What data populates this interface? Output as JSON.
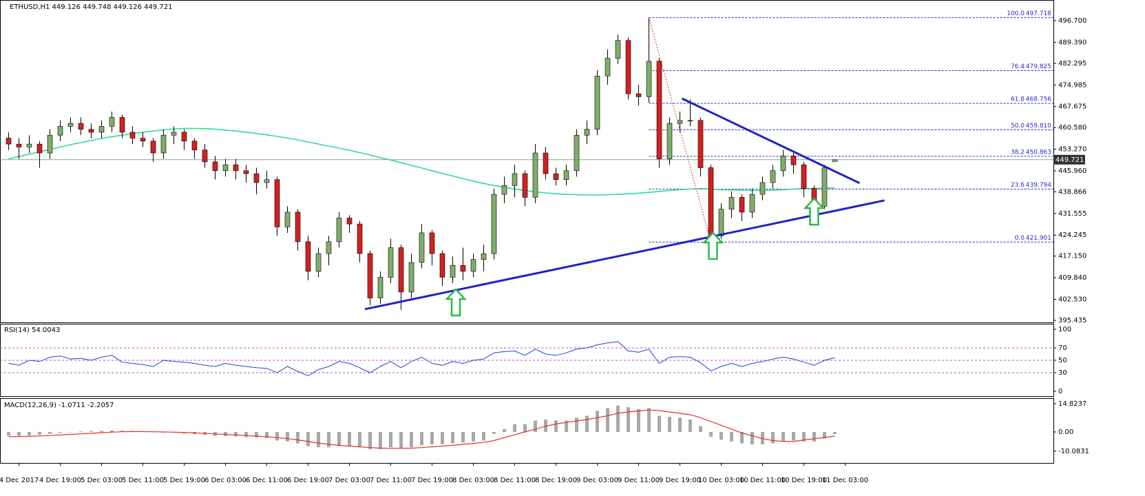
{
  "chart_data": [
    {
      "type": "candlestick",
      "title": "ETHUSD,H1 449.126 449.748 449.126 449.721",
      "categories": [
        null,
        "4 Dec 2017",
        null,
        null,
        null,
        "4 Dec 19:00",
        null,
        null,
        null,
        "5 Dec 03:00",
        null,
        null,
        null,
        "5 Dec 11:00",
        null,
        null,
        null,
        "5 Dec 19:00",
        null,
        null,
        null,
        "6 Dec 03:00",
        null,
        null,
        null,
        "6 Dec 11:00",
        null,
        null,
        null,
        "6 Dec 19:00",
        null,
        null,
        null,
        "7 Dec 03:00",
        null,
        null,
        null,
        "7 Dec 11:00",
        null,
        null,
        null,
        "7 Dec 19:00",
        null,
        null,
        null,
        "8 Dec 03:00",
        null,
        null,
        null,
        "8 Dec 11:00",
        null,
        null,
        null,
        "8 Dec 19:00",
        null,
        null,
        null,
        "9 Dec 03:00",
        null,
        null,
        null,
        "9 Dec 11:00",
        null,
        null,
        null,
        "9 Dec 19:00",
        null,
        null,
        null,
        "10 Dec 03:00",
        null,
        null,
        null,
        "10 Dec 11:00",
        null,
        null,
        null,
        "10 Dec 19:00",
        null,
        null,
        null,
        "11 Dec 03:00"
      ],
      "open": [
        457,
        455,
        454,
        455,
        452,
        458,
        461,
        462,
        460,
        459,
        461,
        464,
        459,
        457,
        456,
        452,
        458,
        459,
        456,
        453,
        449,
        446,
        448,
        446,
        445,
        442,
        443,
        427,
        432,
        422,
        412,
        418,
        422,
        430,
        428,
        418,
        403,
        410,
        420,
        405,
        415,
        425,
        418,
        410,
        414,
        412,
        416,
        418,
        438,
        441,
        445,
        437,
        452,
        445,
        443,
        446,
        458,
        460,
        478,
        484,
        490,
        472,
        471,
        483,
        450,
        462,
        463,
        463,
        447,
        424,
        433,
        437,
        432,
        438,
        442,
        446,
        451,
        448,
        440,
        434,
        449.126,
        null
      ],
      "high": [
        459,
        457,
        458,
        456,
        460,
        463,
        464,
        464,
        462,
        463,
        466,
        465,
        461,
        459,
        457,
        460,
        461,
        460,
        457,
        455,
        451,
        450,
        450,
        448,
        447,
        446,
        444,
        434,
        433,
        424,
        420,
        424,
        432,
        431,
        429,
        419,
        412,
        423,
        421,
        418,
        428,
        426,
        419,
        417,
        420,
        418,
        421,
        440,
        444,
        448,
        446,
        455,
        454,
        447,
        448,
        460,
        463,
        480,
        487,
        492,
        491,
        475,
        497.718,
        484,
        464,
        466,
        470,
        464,
        448,
        435,
        439,
        438,
        440,
        444,
        448,
        453,
        452,
        449,
        441,
        448,
        449.748,
        null
      ],
      "low": [
        453,
        450,
        452,
        447,
        450,
        456,
        459,
        458,
        457,
        457,
        459,
        457,
        455,
        454,
        449,
        450,
        455,
        453,
        450,
        447,
        443,
        444,
        443,
        442,
        438,
        440,
        424,
        425,
        419,
        409,
        410,
        414,
        420,
        425,
        415,
        400.5,
        401,
        408,
        399,
        403,
        413,
        414,
        407,
        408,
        409,
        410,
        412,
        416,
        435,
        437,
        434,
        435,
        443,
        441,
        441,
        444,
        455,
        458,
        475,
        482,
        470,
        468,
        469,
        447,
        448,
        459,
        461,
        444,
        421.901,
        423,
        430,
        429,
        430,
        436,
        440,
        444,
        445,
        437,
        432,
        433,
        449.126,
        null
      ],
      "close": [
        455,
        454,
        455,
        452,
        458,
        461,
        462,
        460,
        459,
        461,
        464,
        459,
        457,
        456,
        452,
        458,
        459,
        456,
        453,
        449,
        446,
        448,
        446,
        445,
        442,
        443,
        427,
        432,
        422,
        412,
        418,
        422,
        430,
        428,
        418,
        403,
        410,
        420,
        405,
        415,
        425,
        418,
        410,
        414,
        412,
        416,
        418,
        438,
        441,
        445,
        437,
        452,
        445,
        443,
        446,
        458,
        460,
        478,
        484,
        490,
        472,
        471,
        483,
        450,
        462,
        463,
        463,
        447,
        424,
        433,
        437,
        432,
        438,
        442,
        446,
        451,
        448,
        440,
        434,
        447,
        449.721,
        null
      ],
      "up_color": "#7fae6a",
      "down_color": "#d42020",
      "wick_color": "#000000",
      "ylim": [
        394.74,
        503.68
      ],
      "yticks": [
        {
          "value": 496.7,
          "label": "496.700"
        },
        {
          "value": 489.39,
          "label": "489.390"
        },
        482.295,
        474.985,
        467.675,
        {
          "value": 460.58,
          "label": "460.580"
        },
        {
          "value": 453.27,
          "label": "453.270"
        },
        {
          "value": 445.96,
          "label": "445.960"
        },
        438.866,
        431.555,
        424.245,
        {
          "value": 417.15,
          "label": "417.150"
        },
        {
          "value": 409.84,
          "label": "409.840"
        },
        {
          "value": 402.53,
          "label": "402.530"
        },
        395.435
      ],
      "moving_average": {
        "color": "#35d890",
        "values": [
          450,
          450.8,
          451.6,
          452.4,
          453.2,
          454,
          454.8,
          455.5,
          456.2,
          456.9,
          457.5,
          458,
          458.5,
          459,
          459.4,
          459.8,
          460.1,
          460.3,
          460.3,
          460.2,
          460,
          459.7,
          459.4,
          459,
          458.6,
          458.1,
          457.6,
          457,
          456.4,
          455.7,
          455,
          454.3,
          453.6,
          452.9,
          452.1,
          451.3,
          450.4,
          449.6,
          448.7,
          447.8,
          446.9,
          446,
          445.1,
          444.2,
          443.3,
          442.5,
          441.7,
          441,
          440.4,
          439.8,
          439.3,
          438.9,
          438.5,
          438.2,
          438,
          437.9,
          437.8,
          437.8,
          437.9,
          438,
          438.2,
          438.4,
          438.7,
          439,
          439.3,
          439.6,
          439.8,
          440,
          439.8,
          439.6,
          439.5,
          439.4,
          439.3,
          439.3,
          439.4,
          439.6,
          439.8,
          440,
          440,
          440.1,
          440.2,
          null
        ]
      },
      "fib": {
        "color": "#2a2ad0",
        "swing_color": "#e03030",
        "anchor_x": [
          62,
          68
        ],
        "levels": [
          {
            "value": 100,
            "label": "100.0"
          },
          76.4,
          61.8,
          {
            "value": 50,
            "label": "50.0"
          },
          38.2,
          23.6,
          {
            "value": 0,
            "label": "0.0"
          }
        ],
        "prices": [
          497.718,
          479.825,
          468.756,
          {
            "value": 459.81,
            "label": "459.810"
          },
          450.863,
          439.794,
          421.901
        ]
      },
      "trendline_color": "#2020cc",
      "trendlines": [
        {
          "x": [
            34.5,
            84.8
          ],
          "y": [
            399.2,
            435.95
          ]
        },
        {
          "x": [
            65.2,
            82.4
          ],
          "y": [
            470.4,
            441.8
          ]
        }
      ],
      "arrows": {
        "color": "#2db84a",
        "x": [
          43.3,
          68.2,
          78
        ],
        "y": [
          405.9,
          425,
          436.6
        ]
      }
    },
    {
      "type": "line",
      "title": "RSI(14) 54.0043",
      "color": "#2040d0",
      "level_color": "#c040c0",
      "values": [
        45,
        42,
        50,
        48,
        55,
        57,
        52,
        53,
        50,
        55,
        58,
        47,
        45,
        43,
        40,
        50,
        48,
        47,
        45,
        42,
        40,
        45,
        42,
        40,
        38,
        37,
        30,
        40,
        32,
        25,
        35,
        40,
        48,
        45,
        38,
        30,
        40,
        48,
        38,
        48,
        55,
        45,
        42,
        48,
        45,
        50,
        52,
        62,
        64,
        65,
        58,
        68,
        60,
        58,
        62,
        68,
        70,
        75,
        78,
        80,
        65,
        63,
        68,
        45,
        55,
        56,
        55,
        46,
        33,
        40,
        45,
        40,
        45,
        48,
        52,
        55,
        52,
        47,
        42,
        50,
        54.0043,
        null
      ],
      "ylim": [
        -7.8,
        108.9
      ],
      "yticks": [
        0,
        30,
        50,
        70,
        100
      ],
      "levels": [
        30,
        50,
        70
      ]
    },
    {
      "type": "macd",
      "title": "MACD(12,26,9) -1.0711 -2.2057",
      "histogram_color": "#a8a8a8",
      "signal_color": "#e03030",
      "histogram": [
        -2,
        -2,
        -1.8,
        -1.5,
        -1,
        -0.5,
        0,
        0.3,
        0.5,
        0.6,
        0.8,
        0.7,
        0.5,
        0.2,
        -0.2,
        -0.3,
        -0.4,
        -0.8,
        -1.2,
        -1.6,
        -2,
        -2.2,
        -2.4,
        -2.7,
        -3,
        -3.2,
        -4.5,
        -5,
        -6,
        -7.5,
        -8,
        -8,
        -7.5,
        -7.5,
        -8,
        -9,
        -9,
        -8,
        -8.5,
        -8,
        -7,
        -6.5,
        -6.5,
        -6,
        -5.5,
        -5,
        -4.5,
        -1,
        1.5,
        4,
        4,
        6,
        6.5,
        6,
        6,
        7.5,
        8.5,
        11,
        12.5,
        13.8,
        13,
        12,
        12.5,
        8.5,
        8,
        7.5,
        6.5,
        3,
        -2.5,
        -4,
        -5,
        -6,
        -6.5,
        -6.5,
        -6,
        -5,
        -4.5,
        -5,
        -5,
        -3.5,
        -1.0711,
        null
      ],
      "signal": [
        -2.5,
        -2.4,
        -2.3,
        -2.1,
        -1.9,
        -1.6,
        -1.3,
        -1,
        -0.7,
        -0.4,
        -0.1,
        0.1,
        0.2,
        0.2,
        0.1,
        0,
        -0.1,
        -0.3,
        -0.5,
        -0.8,
        -1,
        -1.3,
        -1.6,
        -1.9,
        -2.2,
        -2.5,
        -3,
        -3.5,
        -4.2,
        -5,
        -5.8,
        -6.5,
        -7,
        -7.4,
        -7.8,
        -8.2,
        -8.5,
        -8.6,
        -8.6,
        -8.5,
        -8.2,
        -7.8,
        -7.4,
        -7,
        -6.5,
        -6,
        -5.5,
        -4.5,
        -3,
        -1.5,
        0,
        1.5,
        3,
        4.2,
        5,
        5.8,
        6.5,
        7.5,
        8.5,
        9.8,
        10.5,
        11,
        11.5,
        11.2,
        10.5,
        9.8,
        9,
        7.5,
        5.5,
        3.5,
        1.5,
        -0.5,
        -2,
        -3.5,
        -4.5,
        -5,
        -5,
        -4.2,
        -3.6,
        -2.9,
        -2.2057,
        null
      ],
      "ylim": [
        -16.25,
        17.71
      ],
      "yticks": [
        14.8237,
        {
          "value": 0,
          "label": "0.00"
        },
        -10.0831
      ]
    }
  ]
}
